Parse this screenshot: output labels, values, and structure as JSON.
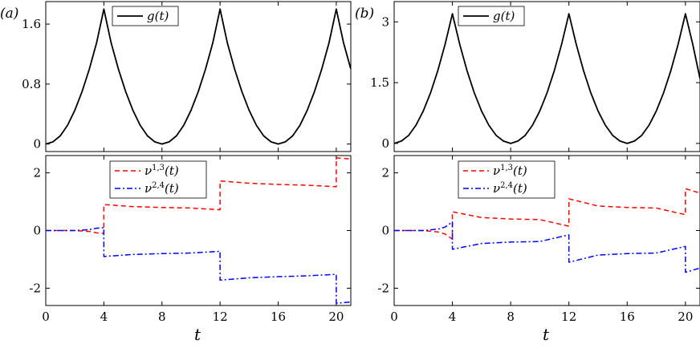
{
  "chart_data": [
    {
      "id": "a-top",
      "panel_label": "(a)",
      "type": "line",
      "xlim": [
        0,
        21
      ],
      "ylim": [
        -0.1,
        1.9
      ],
      "yticks": [
        0,
        0.8,
        1.6
      ],
      "ytick_labels": [
        "0",
        "0.8",
        "1.6"
      ],
      "series": [
        {
          "name": "g(t)",
          "legend": {
            "base": "g(t)"
          },
          "color": "#000000",
          "dash": "solid",
          "x": [
            0,
            0.5,
            1,
            1.5,
            2,
            2.5,
            3,
            3.5,
            4,
            4.5,
            5,
            5.5,
            6,
            6.5,
            7,
            7.5,
            8,
            8.5,
            9,
            9.5,
            10,
            10.5,
            11,
            11.5,
            12,
            12.5,
            13,
            13.5,
            14,
            14.5,
            15,
            15.5,
            16,
            16.5,
            17,
            17.5,
            18,
            18.5,
            19,
            19.5,
            20,
            20.5,
            21
          ],
          "values": [
            0,
            0.03,
            0.11,
            0.25,
            0.45,
            0.7,
            1.0,
            1.35,
            1.8,
            1.35,
            1.0,
            0.7,
            0.45,
            0.25,
            0.11,
            0.03,
            0,
            0.03,
            0.11,
            0.25,
            0.45,
            0.7,
            1.0,
            1.35,
            1.8,
            1.35,
            1.0,
            0.7,
            0.45,
            0.25,
            0.11,
            0.03,
            0,
            0.03,
            0.11,
            0.25,
            0.45,
            0.7,
            1.0,
            1.35,
            1.8,
            1.35,
            1.0
          ]
        }
      ]
    },
    {
      "id": "a-bottom",
      "type": "line",
      "xlim": [
        0,
        21
      ],
      "ylim": [
        -2.6,
        2.6
      ],
      "xlabel": "t",
      "xticks": [
        0,
        4,
        8,
        12,
        16,
        20
      ],
      "xtick_labels": [
        "0",
        "4",
        "8",
        "12",
        "16",
        "20"
      ],
      "yticks": [
        2,
        0,
        -2
      ],
      "ytick_labels": [
        "2",
        "0",
        "-2"
      ],
      "series": [
        {
          "name": "ν^{1,3}(t)",
          "legend": {
            "base": "ν",
            "sup": "1,3",
            "tail": "(t)"
          },
          "color": "#ff0000",
          "dash": "dashed",
          "x": [
            0,
            2,
            3,
            3.5,
            3.999,
            4.001,
            6,
            8,
            10,
            11.999,
            12.001,
            14,
            16,
            18,
            19.999,
            20.001,
            21
          ],
          "values": [
            0,
            0,
            -0.03,
            -0.08,
            -0.1,
            0.9,
            0.83,
            0.8,
            0.78,
            0.72,
            1.72,
            1.64,
            1.6,
            1.57,
            1.52,
            2.52,
            2.48
          ]
        },
        {
          "name": "ν^{2,4}(t)",
          "legend": {
            "base": "ν",
            "sup": "2,4",
            "tail": "(t)"
          },
          "color": "#0000ff",
          "dash": "dashdot",
          "x": [
            0,
            2,
            3,
            3.5,
            3.999,
            4.001,
            6,
            8,
            10,
            11.999,
            12.001,
            14,
            16,
            18,
            19.999,
            20.001,
            21
          ],
          "values": [
            0,
            0,
            0.03,
            0.08,
            0.1,
            -0.9,
            -0.83,
            -0.8,
            -0.78,
            -0.72,
            -1.72,
            -1.64,
            -1.6,
            -1.57,
            -1.52,
            -2.52,
            -2.48
          ]
        }
      ]
    },
    {
      "id": "b-top",
      "panel_label": "(b)",
      "type": "line",
      "xlim": [
        0,
        21
      ],
      "ylim": [
        -0.2,
        3.5
      ],
      "yticks": [
        0,
        1.5,
        3
      ],
      "ytick_labels": [
        "0",
        "1.5",
        "3"
      ],
      "series": [
        {
          "name": "g(t)",
          "legend": {
            "base": "g(t)"
          },
          "color": "#000000",
          "dash": "solid",
          "x": [
            0,
            0.5,
            1,
            1.5,
            2,
            2.5,
            3,
            3.5,
            4,
            4.5,
            5,
            5.5,
            6,
            6.5,
            7,
            7.5,
            8,
            8.5,
            9,
            9.5,
            10,
            10.5,
            11,
            11.5,
            12,
            12.5,
            13,
            13.5,
            14,
            14.5,
            15,
            15.5,
            16,
            16.5,
            17,
            17.5,
            18,
            18.5,
            19,
            19.5,
            20,
            20.5,
            21
          ],
          "values": [
            0,
            0.06,
            0.2,
            0.45,
            0.8,
            1.25,
            1.8,
            2.45,
            3.2,
            2.45,
            1.8,
            1.25,
            0.8,
            0.45,
            0.2,
            0.06,
            0,
            0.06,
            0.2,
            0.45,
            0.8,
            1.25,
            1.8,
            2.45,
            3.2,
            2.45,
            1.8,
            1.25,
            0.8,
            0.45,
            0.2,
            0.06,
            0,
            0.06,
            0.2,
            0.45,
            0.8,
            1.25,
            1.8,
            2.45,
            3.2,
            2.45,
            1.6
          ]
        }
      ]
    },
    {
      "id": "b-bottom",
      "type": "line",
      "xlim": [
        0,
        21
      ],
      "ylim": [
        -2.6,
        2.6
      ],
      "xlabel": "t",
      "xticks": [
        0,
        4,
        8,
        12,
        16,
        20
      ],
      "xtick_labels": [
        "0",
        "4",
        "8",
        "12",
        "16",
        "20"
      ],
      "yticks": [
        2,
        0,
        -2
      ],
      "ytick_labels": [
        "2",
        "0",
        "-2"
      ],
      "series": [
        {
          "name": "ν^{1,3}(t)",
          "legend": {
            "base": "ν",
            "sup": "1,3",
            "tail": "(t)"
          },
          "color": "#ff0000",
          "dash": "dashed",
          "x": [
            0,
            2,
            3,
            3.5,
            3.999,
            4.001,
            6,
            8,
            10,
            11.999,
            12.001,
            14,
            16,
            18,
            19.999,
            20.001,
            21
          ],
          "values": [
            0,
            0,
            -0.05,
            -0.12,
            -0.3,
            0.65,
            0.45,
            0.4,
            0.38,
            0.15,
            1.1,
            0.85,
            0.8,
            0.78,
            0.55,
            1.45,
            1.3
          ]
        },
        {
          "name": "ν^{2,4}(t)",
          "legend": {
            "base": "ν",
            "sup": "2,4",
            "tail": "(t)"
          },
          "color": "#0000ff",
          "dash": "dashdot",
          "x": [
            0,
            2,
            3,
            3.5,
            3.999,
            4.001,
            6,
            8,
            10,
            11.999,
            12.001,
            14,
            16,
            18,
            19.999,
            20.001,
            21
          ],
          "values": [
            0,
            0,
            0.05,
            0.12,
            0.3,
            -0.65,
            -0.45,
            -0.4,
            -0.38,
            -0.15,
            -1.1,
            -0.85,
            -0.8,
            -0.78,
            -0.55,
            -1.45,
            -1.3
          ]
        }
      ]
    }
  ]
}
